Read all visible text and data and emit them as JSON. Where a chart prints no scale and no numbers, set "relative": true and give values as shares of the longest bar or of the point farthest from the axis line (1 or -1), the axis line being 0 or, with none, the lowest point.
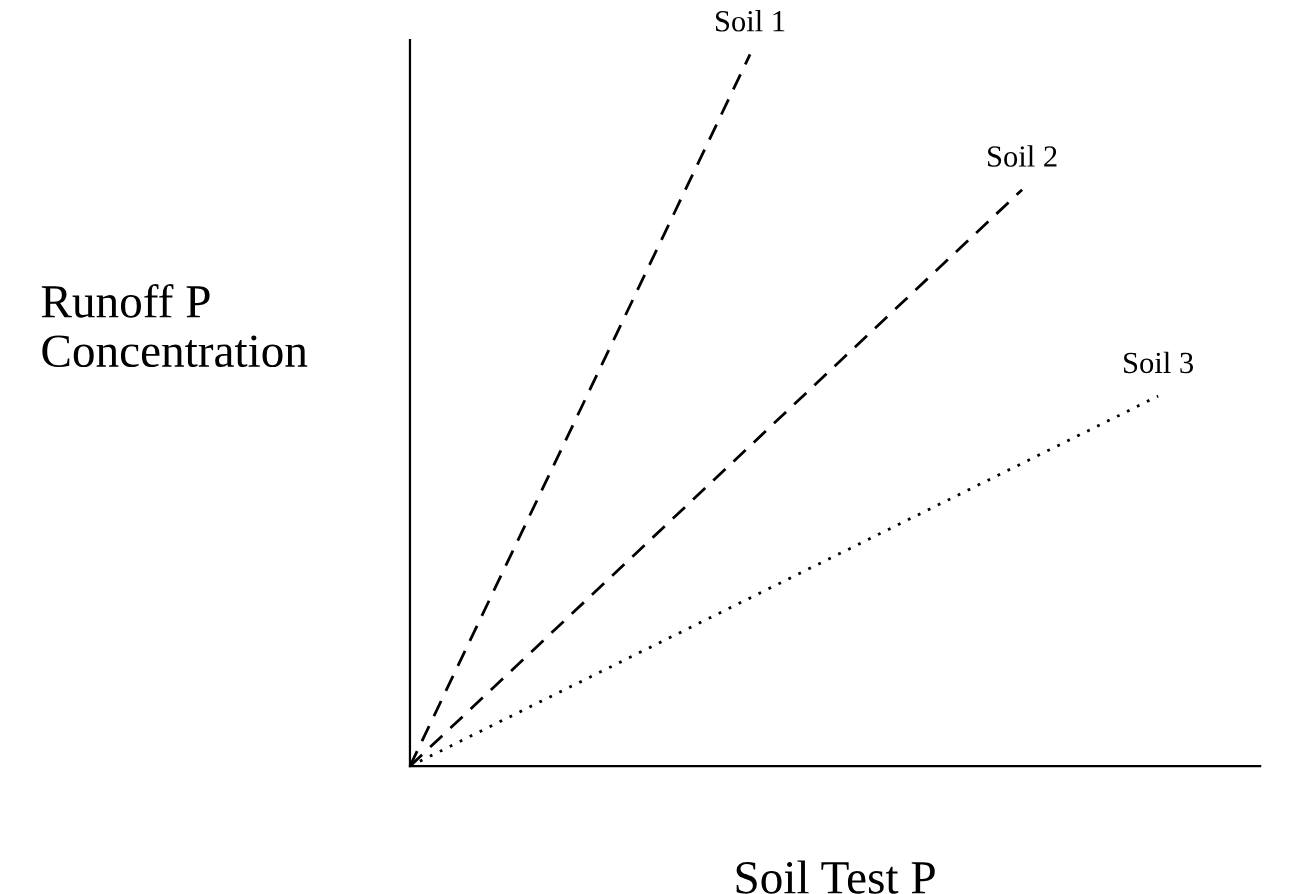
{
  "chart_data": {
    "type": "line",
    "relative": true,
    "xlabel": "Soil Test P",
    "ylabel": "Runoff P\nConcentration",
    "grid": false,
    "marker": "none",
    "categories": [
      null,
      null,
      null,
      null,
      null,
      null,
      null,
      null,
      null,
      null,
      null,
      null,
      null,
      null,
      null,
      null,
      null,
      null,
      null,
      null,
      null,
      null,
      null,
      null,
      null,
      null
    ],
    "series": [
      {
        "name": "Soil 1",
        "color": "#000000",
        "line_style": "dashed",
        "values": [
          0,
          null,
          null,
          null,
          null,
          null,
          null,
          null,
          null,
          null,
          1,
          null,
          null,
          null,
          null,
          null,
          null,
          null,
          null,
          null,
          null,
          null,
          null,
          null,
          null,
          null
        ]
      },
      {
        "name": "Soil 2",
        "color": "#000000",
        "line_style": "dashed",
        "values": [
          0,
          null,
          null,
          null,
          null,
          null,
          null,
          null,
          null,
          null,
          null,
          null,
          null,
          null,
          null,
          null,
          null,
          null,
          0.81,
          null,
          null,
          null,
          null,
          null,
          null,
          null
        ]
      },
      {
        "name": "Soil 3",
        "color": "#000000",
        "line_style": "dotted",
        "values": [
          0,
          null,
          null,
          null,
          null,
          null,
          null,
          null,
          null,
          null,
          null,
          null,
          null,
          null,
          null,
          null,
          null,
          null,
          null,
          null,
          null,
          null,
          0.52,
          null,
          null,
          null
        ]
      }
    ]
  }
}
